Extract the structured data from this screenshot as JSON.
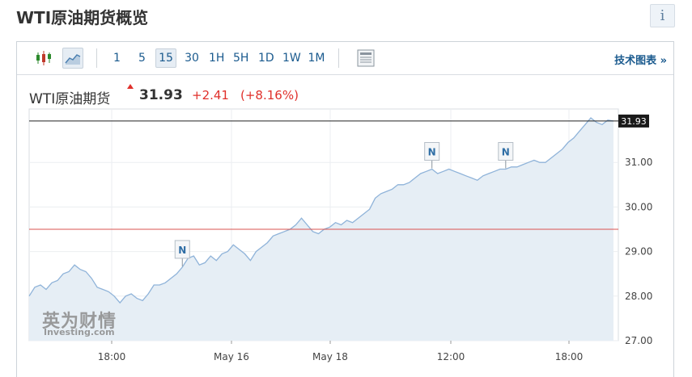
{
  "page": {
    "title": "WTI原油期货概览",
    "info_glyph": "i"
  },
  "toolbar": {
    "icons": [
      "candlestick-icon",
      "area-chart-icon",
      "table-icon"
    ],
    "intervals": [
      "1",
      "5",
      "15",
      "30",
      "1H",
      "5H",
      "1D",
      "1W",
      "1M"
    ],
    "active_interval": "15",
    "tech_link": "技术图表 »"
  },
  "quote": {
    "name": "WTI原油期货",
    "price": "31.93",
    "change": "+2.41",
    "change_pct": "(+8.16%)"
  },
  "watermark": {
    "line1": "英为财情",
    "line2": "Investing.com"
  },
  "colors": {
    "line": "#8fb3d9",
    "fill": "#e6eef5",
    "up": "#e0302b",
    "link": "#1a5a8e"
  },
  "chart_data": {
    "type": "area",
    "ylim": [
      27.0,
      32.2
    ],
    "yticks": [
      "27.00",
      "28.00",
      "29.00",
      "30.00",
      "31.00"
    ],
    "xticks": [
      "18:00",
      "May 16",
      "May 18",
      "12:00",
      "18:00"
    ],
    "last_price": {
      "label": "31.93",
      "value": 31.93
    },
    "reference_line": 29.5,
    "news_markers": [
      "N",
      "N",
      "N"
    ],
    "series": [
      {
        "values": [
          28.0,
          28.2,
          28.25,
          28.15,
          28.3,
          28.35,
          28.5,
          28.55,
          28.7,
          28.6,
          28.55,
          28.4,
          28.2,
          28.15,
          28.1,
          28.0,
          27.85,
          28.0,
          28.05,
          27.95,
          27.9,
          28.05,
          28.25,
          28.25,
          28.3,
          28.4,
          28.5,
          28.65,
          28.85,
          28.9,
          28.7,
          28.75,
          28.9,
          28.8,
          28.95,
          29.0,
          29.15,
          29.05,
          28.95,
          28.8,
          29.0,
          29.1,
          29.2,
          29.35,
          29.4,
          29.45,
          29.5,
          29.6,
          29.75,
          29.6,
          29.45,
          29.4,
          29.5,
          29.55,
          29.65,
          29.6,
          29.7,
          29.65,
          29.75,
          29.85,
          29.95,
          30.2,
          30.3,
          30.35,
          30.4,
          30.5,
          30.5,
          30.55,
          30.65,
          30.75,
          30.8,
          30.85,
          30.75,
          30.8,
          30.85,
          30.8,
          30.75,
          30.7,
          30.65,
          30.6,
          30.7,
          30.75,
          30.8,
          30.85,
          30.85,
          30.9,
          30.9,
          30.95,
          31.0,
          31.05,
          31.0,
          31.0,
          31.1,
          31.2,
          31.3,
          31.45,
          31.55,
          31.7,
          31.85,
          32.0,
          31.9,
          31.85,
          31.95,
          31.93
        ]
      }
    ]
  }
}
